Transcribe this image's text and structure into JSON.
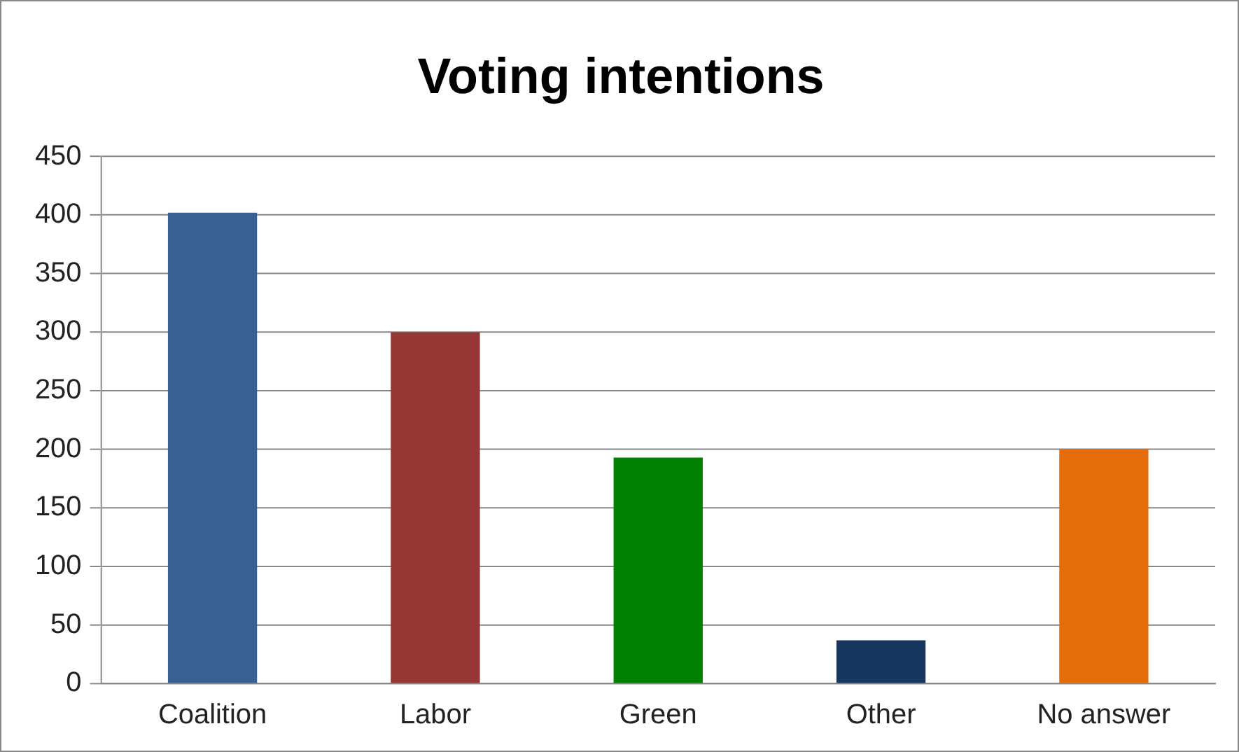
{
  "chart_data": {
    "type": "bar",
    "title": "Voting intentions",
    "categories": [
      "Coalition",
      "Labor",
      "Green",
      "Other",
      "No answer"
    ],
    "values": [
      402,
      300,
      193,
      37,
      200
    ],
    "colors": [
      "#386192",
      "#953735",
      "#008000",
      "#17375e",
      "#e46c0a"
    ],
    "ylim": [
      0,
      450
    ],
    "yticks": [
      0,
      50,
      100,
      150,
      200,
      250,
      300,
      350,
      400,
      450
    ],
    "grid": "y",
    "legend": false
  }
}
